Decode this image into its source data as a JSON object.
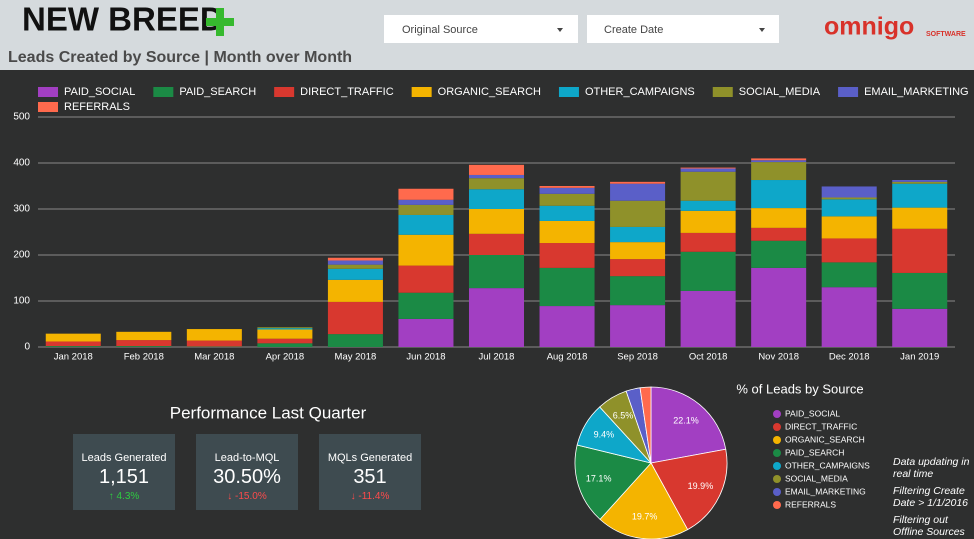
{
  "header": {
    "brand": "NEW BREED",
    "title": "Leads Created by Source | Month over Month",
    "logo": "omnigo",
    "logo_sub": "SOFTWARE"
  },
  "filters": [
    "Original Source",
    "Create Date"
  ],
  "performance": {
    "title": "Performance Last Quarter",
    "cards": [
      {
        "label": "Leads Generated",
        "value": "1,151",
        "change": "↑ 4.3%"
      },
      {
        "label": "Lead-to-MQL",
        "value": "30.50%",
        "change": "↓ -15.0%"
      },
      {
        "label": "MQLs Generated",
        "value": "351",
        "change": "↓ -11.4%"
      }
    ]
  },
  "notes": [
    "Data updating in real time",
    "Filtering Create Date > 1/1/2016",
    "Filtering out Offline Sources"
  ],
  "chart_data": [
    {
      "type": "stacked_bar",
      "categories": [
        "Jan 2018",
        "Feb 2018",
        "Mar 2018",
        "Apr 2018",
        "May 2018",
        "Jun 2018",
        "Jul 2018",
        "Aug 2018",
        "Sep 2018",
        "Oct 2018",
        "Nov 2018",
        "Dec 2018",
        "Jan 2019"
      ],
      "series": [
        {
          "name": "PAID_SOCIAL",
          "color": "#a23fc2",
          "values": [
            0,
            0,
            0,
            0,
            0,
            61,
            128,
            89,
            91,
            122,
            172,
            130,
            83
          ]
        },
        {
          "name": "PAID_SEARCH",
          "color": "#1b8a45",
          "values": [
            2,
            2,
            1,
            8,
            28,
            57,
            72,
            83,
            63,
            85,
            59,
            54,
            78
          ]
        },
        {
          "name": "DIRECT_TRAFFIC",
          "color": "#d8382f",
          "values": [
            10,
            13,
            13,
            10,
            70,
            59,
            46,
            54,
            37,
            41,
            28,
            52,
            96
          ]
        },
        {
          "name": "ORGANIC_SEARCH",
          "color": "#f4b400",
          "values": [
            17,
            18,
            25,
            20,
            48,
            67,
            54,
            48,
            37,
            48,
            43,
            48,
            46
          ]
        },
        {
          "name": "OTHER_CAMPAIGNS",
          "color": "#0ea7c9",
          "values": [
            0,
            0,
            0,
            3,
            24,
            43,
            43,
            33,
            33,
            22,
            61,
            37,
            52
          ]
        },
        {
          "name": "SOCIAL_MEDIA",
          "color": "#8f912a",
          "values": [
            0,
            0,
            0,
            2,
            9,
            22,
            24,
            26,
            57,
            63,
            39,
            4,
            4
          ]
        },
        {
          "name": "EMAIL_MARKETING",
          "color": "#5a5fc8",
          "values": [
            0,
            0,
            0,
            0,
            9,
            11,
            7,
            13,
            37,
            7,
            4,
            24,
            4
          ]
        },
        {
          "name": "REFERRALS",
          "color": "#ff6a4d",
          "values": [
            0,
            0,
            0,
            0,
            6,
            24,
            22,
            4,
            4,
            2,
            4,
            0,
            0
          ]
        }
      ],
      "ylim": [
        0,
        500
      ],
      "yticks": [
        0,
        100,
        200,
        300,
        400,
        500
      ],
      "grid": true
    },
    {
      "type": "pie",
      "title": "% of Leads by Source",
      "categories": [
        "PAID_SOCIAL",
        "DIRECT_TRAFFIC",
        "ORGANIC_SEARCH",
        "PAID_SEARCH",
        "OTHER_CAMPAIGNS",
        "SOCIAL_MEDIA",
        "EMAIL_MARKETING",
        "REFERRALS"
      ],
      "values": [
        22.1,
        19.9,
        19.7,
        17.1,
        9.4,
        6.5,
        3.0,
        2.3
      ],
      "value_labels": [
        "22.1%",
        "19.9%",
        "19.7%",
        "17.1%",
        "9.4%",
        "6.5%",
        null,
        null
      ],
      "colors": [
        "#a23fc2",
        "#d8382f",
        "#f4b400",
        "#1b8a45",
        "#0ea7c9",
        "#8f912a",
        "#5a5fc8",
        "#ff6a4d"
      ]
    }
  ]
}
